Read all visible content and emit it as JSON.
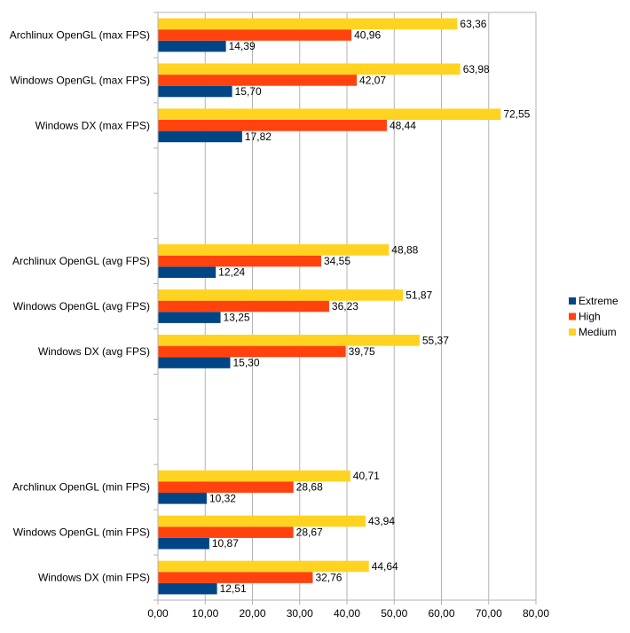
{
  "chart_data": {
    "type": "bar",
    "orientation": "horizontal",
    "title": "",
    "xlabel": "",
    "ylabel": "",
    "categories": [
      "Archlinux OpenGL (max FPS)",
      "Windows OpenGL (max FPS)",
      "Windows DX (max FPS)",
      "",
      "",
      "Archlinux OpenGL (avg FPS)",
      "Windows OpenGL (avg FPS)",
      "Windows DX (avg FPS)",
      "",
      "",
      "Archlinux OpenGL (min FPS)",
      "Windows OpenGL (min FPS)",
      "Windows DX (min FPS)"
    ],
    "series": [
      {
        "name": "Extreme",
        "color": "#004586",
        "values": [
          14.39,
          15.7,
          17.82,
          null,
          null,
          12.24,
          13.25,
          15.3,
          null,
          null,
          10.32,
          10.87,
          12.51
        ],
        "labels": [
          "14,39",
          "15,70",
          "17,82",
          "",
          "",
          "12,24",
          "13,25",
          "15,30",
          "",
          "",
          "10,32",
          "10,87",
          "12,51"
        ]
      },
      {
        "name": "High",
        "color": "#ff420e",
        "values": [
          40.96,
          42.07,
          48.44,
          null,
          null,
          34.55,
          36.23,
          39.75,
          null,
          null,
          28.68,
          28.67,
          32.76
        ],
        "labels": [
          "40,96",
          "42,07",
          "48,44",
          "",
          "",
          "34,55",
          "36,23",
          "39,75",
          "",
          "",
          "28,68",
          "28,67",
          "32,76"
        ]
      },
      {
        "name": "Medium",
        "color": "#ffd320",
        "values": [
          63.36,
          63.98,
          72.55,
          null,
          null,
          48.88,
          51.87,
          55.37,
          null,
          null,
          40.71,
          43.94,
          44.64
        ],
        "labels": [
          "63,36",
          "63,98",
          "72,55",
          "",
          "",
          "48,88",
          "51,87",
          "55,37",
          "",
          "",
          "40,71",
          "43,94",
          "44,64"
        ]
      }
    ],
    "xlim": [
      0,
      80
    ],
    "xticks": [
      "0,00",
      "10,00",
      "20,00",
      "30,00",
      "40,00",
      "50,00",
      "60,00",
      "70,00",
      "80,00"
    ],
    "grid": "vertical",
    "legend_position": "right"
  }
}
